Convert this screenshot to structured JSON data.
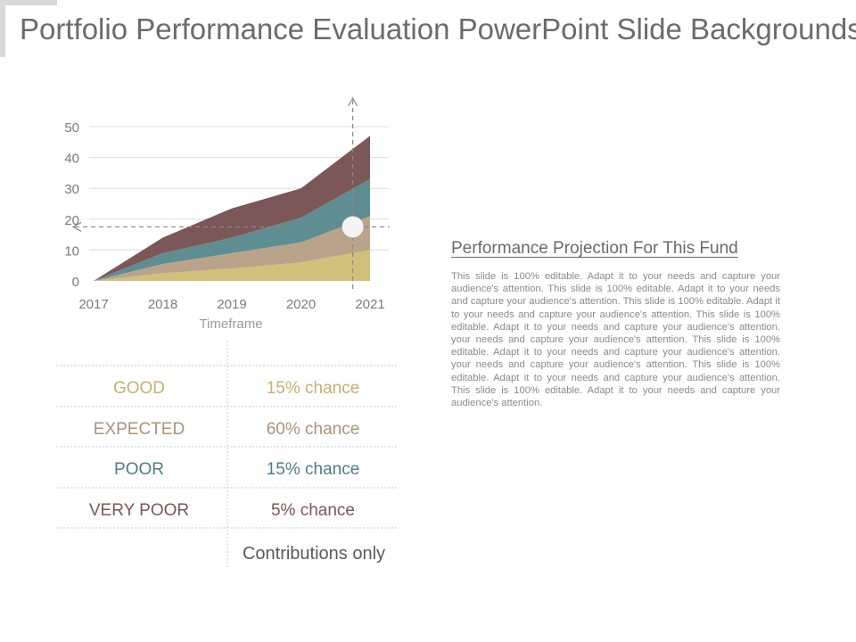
{
  "title": "Portfolio Performance Evaluation PowerPoint Slide Backgrounds",
  "chart_data": {
    "type": "area",
    "stacked": true,
    "x": [
      "2017",
      "2018",
      "2019",
      "2020",
      "2021"
    ],
    "xlabel": "Timeframe",
    "ylabel": "",
    "ylim": [
      0,
      50
    ],
    "yticks": [
      0,
      10,
      20,
      30,
      40,
      50
    ],
    "grid": true,
    "series": [
      {
        "values": [
          0,
          2.5,
          4,
          6,
          10
        ],
        "color": "#d0c07a"
      },
      {
        "values": [
          0,
          3,
          5,
          6.5,
          11
        ],
        "color": "#b9a48b"
      },
      {
        "values": [
          0,
          3.5,
          5,
          8,
          12
        ],
        "color": "#5e8d92"
      },
      {
        "values": [
          0,
          5,
          9.5,
          9.5,
          14
        ],
        "color": "#7b5757"
      }
    ],
    "marker": {
      "x": 2020.75,
      "y": 17.5
    }
  },
  "table": {
    "rows": [
      {
        "scenario": "GOOD",
        "chance": "15% chance",
        "color": "#c3b26b"
      },
      {
        "scenario": "EXPECTED",
        "chance": "60% chance",
        "color": "#a99479"
      },
      {
        "scenario": "POOR",
        "chance": "15% chance",
        "color": "#4f7d83"
      },
      {
        "scenario": "VERY POOR",
        "chance": "5% chance",
        "color": "#7b5757"
      }
    ],
    "footer": "Contributions only"
  },
  "projection": {
    "title": "Performance Projection For This Fund",
    "body": "This slide is 100% editable. Adapt it to your needs and capture your audience's attention. This slide is 100% editable. Adapt it to your needs and capture your audience's attention. This slide is 100% editable. Adapt it to your needs and capture your audience's attention. This slide is 100% editable. Adapt it to your needs and capture your audience's attention. your needs and capture your audience's attention. This slide is 100% editable. Adapt it to your needs and capture your audience's attention. your needs and capture your audience's attention. This slide is 100% editable. Adapt it to your needs and capture your audience's attention. This slide is 100% editable. Adapt it to your needs and capture your audience's attention."
  }
}
